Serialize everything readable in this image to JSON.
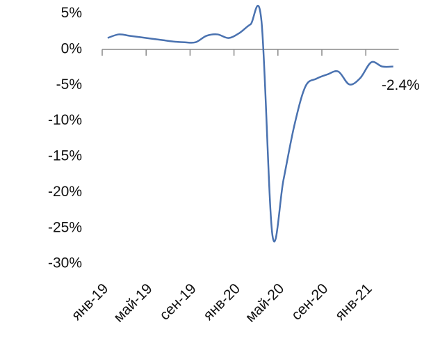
{
  "chart_data": {
    "type": "line",
    "categories": [
      "янв-19",
      null,
      null,
      null,
      "май-19",
      null,
      null,
      null,
      "сен-19",
      null,
      null,
      null,
      "янв-20",
      null,
      null,
      null,
      "май-20",
      null,
      null,
      null,
      "сен-20",
      null,
      null,
      null,
      "янв-21",
      null,
      null
    ],
    "series": [
      {
        "color": "#4a72b0",
        "values": [
          1.6,
          2.1,
          1.9,
          1.7,
          1.5,
          1.3,
          1.1,
          1.0,
          1.0,
          1.9,
          2.1,
          1.6,
          2.3,
          3.5,
          4.0,
          -26.0,
          -18.3,
          -10.6,
          -5.2,
          -4.1,
          -3.5,
          -3.1,
          -4.9,
          -4.0,
          -1.8,
          -2.4,
          -2.4
        ],
        "value_labels": [
          null,
          null,
          null,
          null,
          null,
          null,
          null,
          null,
          null,
          null,
          null,
          null,
          null,
          null,
          null,
          null,
          null,
          null,
          null,
          null,
          null,
          null,
          null,
          null,
          null,
          null,
          "-2.4%"
        ]
      }
    ],
    "ylim": [
      -31,
      6
    ],
    "yticks": [
      {
        "value": 5,
        "label": "5%"
      },
      {
        "value": 0,
        "label": "0%"
      },
      {
        "value": -5,
        "label": "-5%"
      },
      {
        "value": -10,
        "label": "-10%"
      },
      {
        "value": -15,
        "label": "-15%"
      },
      {
        "value": -20,
        "label": "-20%"
      },
      {
        "value": -25,
        "label": "-25%"
      },
      {
        "value": -30,
        "label": "-30%"
      }
    ],
    "grid": false
  }
}
